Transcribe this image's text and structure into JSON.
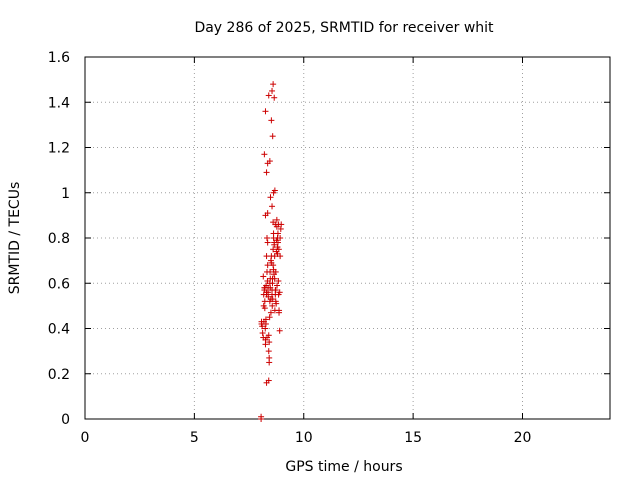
{
  "chart_data": {
    "type": "scatter",
    "title": "Day 286 of 2025, SRMTID for receiver whit",
    "xlabel": "GPS time / hours",
    "ylabel": "SRMTID / TECUs",
    "xlim": [
      0,
      24
    ],
    "ylim": [
      0,
      1.6
    ],
    "x_ticks": [
      0,
      5,
      10,
      15,
      20
    ],
    "x_tick_labels": [
      "0",
      "5",
      "10",
      "15",
      "20"
    ],
    "y_ticks": [
      0,
      0.2,
      0.4,
      0.6,
      0.8,
      1.0,
      1.2,
      1.4,
      1.6
    ],
    "y_tick_labels": [
      "0",
      "0.2",
      "0.4",
      "0.6",
      "0.8",
      "1",
      "1.2",
      "1.4",
      "1.6"
    ],
    "grid": true,
    "marker": "plus",
    "series": [
      {
        "name": "SRMTID",
        "color": "#cc0000",
        "x": [
          8.05,
          8.05,
          8.07,
          8.07,
          8.1,
          8.12,
          8.15,
          8.15,
          8.17,
          8.17,
          8.2,
          8.2,
          8.22,
          8.22,
          8.25,
          8.25,
          8.27,
          8.27,
          8.3,
          8.3,
          8.32,
          8.32,
          8.35,
          8.35,
          8.37,
          8.37,
          8.4,
          8.4,
          8.42,
          8.42,
          8.45,
          8.45,
          8.47,
          8.47,
          8.5,
          8.5,
          8.52,
          8.52,
          8.55,
          8.55,
          8.57,
          8.57,
          8.6,
          8.6,
          8.62,
          8.62,
          8.65,
          8.65,
          8.67,
          8.67,
          8.7,
          8.7,
          8.72,
          8.72,
          8.75,
          8.75,
          8.77,
          8.77,
          8.8,
          8.8,
          8.82,
          8.82,
          8.85,
          8.85,
          8.87,
          8.87,
          8.9,
          8.9,
          8.92,
          8.92,
          8.95,
          8.97,
          8.25,
          8.2,
          8.35,
          8.3,
          8.45,
          8.4,
          8.55,
          8.6,
          8.65,
          8.52,
          8.58,
          8.62,
          8.68,
          8.3,
          8.4,
          8.48,
          8.55,
          8.25,
          8.35,
          8.6,
          8.7,
          8.22,
          8.3,
          8.38,
          8.44,
          8.5,
          8.56,
          8.62,
          8.68,
          8.74,
          8.8,
          8.86,
          8.28,
          8.34,
          8.46,
          8.58,
          8.64,
          8.72,
          8.78,
          8.84,
          8.18,
          8.24,
          8.32,
          8.42
        ],
        "y": [
          0.0,
          0.01,
          0.42,
          0.43,
          0.41,
          0.38,
          0.36,
          0.63,
          0.5,
          0.55,
          0.58,
          0.57,
          0.52,
          0.49,
          0.35,
          0.33,
          0.42,
          0.44,
          0.55,
          0.72,
          0.65,
          0.8,
          0.78,
          0.68,
          0.56,
          0.58,
          0.37,
          0.3,
          0.27,
          0.25,
          0.52,
          0.6,
          0.62,
          0.58,
          0.53,
          0.7,
          0.72,
          0.69,
          0.55,
          0.57,
          0.6,
          0.62,
          0.68,
          0.75,
          0.8,
          0.82,
          0.77,
          0.78,
          0.72,
          0.62,
          0.55,
          0.57,
          0.65,
          0.52,
          0.74,
          0.79,
          0.85,
          0.88,
          0.8,
          0.76,
          0.78,
          0.82,
          0.86,
          0.55,
          0.47,
          0.48,
          0.39,
          0.56,
          0.72,
          0.8,
          0.84,
          0.86,
          1.36,
          1.17,
          1.13,
          1.09,
          1.14,
          1.43,
          1.45,
          1.48,
          1.42,
          1.32,
          1.25,
          1.0,
          1.01,
          0.16,
          0.17,
          0.98,
          0.94,
          0.9,
          0.91,
          0.87,
          0.86,
          0.58,
          0.56,
          0.54,
          0.45,
          0.47,
          0.5,
          0.66,
          0.48,
          0.51,
          0.73,
          0.75,
          0.59,
          0.61,
          0.65,
          0.53,
          0.64,
          0.57,
          0.59,
          0.61,
          0.43,
          0.4,
          0.36,
          0.34
        ]
      }
    ]
  }
}
